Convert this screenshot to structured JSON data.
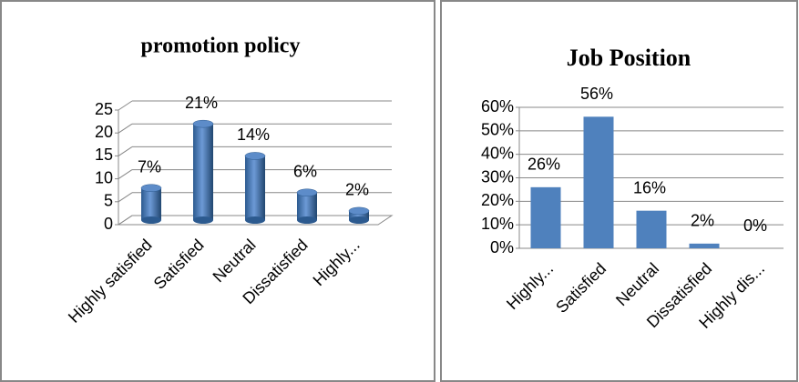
{
  "chart_data": [
    {
      "type": "bar",
      "shape": "cylinder",
      "title": "promotion policy",
      "categories": [
        "Highly satisfied",
        "Satisfied",
        "Neutral",
        "Dissatisfied",
        "Highly..."
      ],
      "values": [
        7,
        21,
        14,
        6,
        2
      ],
      "value_labels": [
        "7%",
        "21%",
        "14%",
        "6%",
        "2%"
      ],
      "color": "#4f81bd",
      "ylim": [
        0,
        25
      ],
      "yticks": [
        0,
        5,
        10,
        15,
        20,
        25
      ],
      "grid": true
    },
    {
      "type": "bar",
      "title": "Job Position",
      "categories": [
        "Highly...",
        "Satisfied",
        "Neutral",
        "Dissatisfied",
        "Highly dis..."
      ],
      "values": [
        26,
        56,
        16,
        2,
        0
      ],
      "value_labels": [
        "26%",
        "56%",
        "16%",
        "2%",
        "0%"
      ],
      "color": "#4f81bd",
      "ylim": [
        0,
        60
      ],
      "yticks": [
        {
          "value": 0,
          "label": "0%"
        },
        {
          "value": 10,
          "label": "10%"
        },
        {
          "value": 20,
          "label": "20%"
        },
        {
          "value": 30,
          "label": "30%"
        },
        {
          "value": 40,
          "label": "40%"
        },
        {
          "value": 50,
          "label": "50%"
        },
        {
          "value": 60,
          "label": "60%"
        }
      ],
      "grid": true
    }
  ]
}
